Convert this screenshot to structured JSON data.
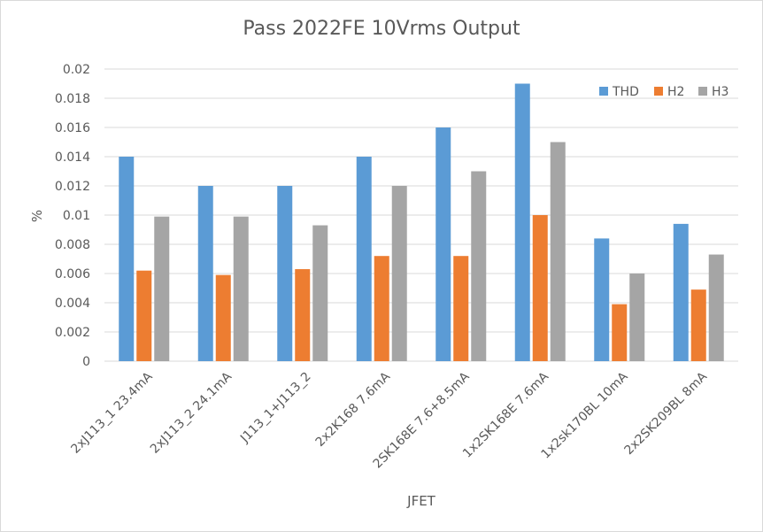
{
  "chart_data": {
    "type": "bar",
    "title": "Pass 2022FE 10Vrms Output",
    "xlabel": "JFET",
    "ylabel": "%",
    "ylim": [
      0,
      0.02
    ],
    "yticks": [
      "0",
      "0.002",
      "0.004",
      "0.006",
      "0.008",
      "0.01",
      "0.012",
      "0.014",
      "0.016",
      "0.018",
      "0.02"
    ],
    "grid": true,
    "legend_position": "top-right",
    "categories": [
      "2xJ113_1 23.4mA",
      "2xJ113_2 24.1mA",
      "J113_1+J113_2",
      "2x2K168 7.6mA",
      "2SK168E 7.6+8.5mA",
      "1x2SK168E 7.6mA",
      "1x2sk170BL 10mA",
      "2x2SK209BL 8mA"
    ],
    "series": [
      {
        "name": "THD",
        "color": "#5b9bd5",
        "values": [
          0.014,
          0.012,
          0.012,
          0.014,
          0.016,
          0.019,
          0.0084,
          0.0094
        ]
      },
      {
        "name": "H2",
        "color": "#ed7d31",
        "values": [
          0.0062,
          0.0059,
          0.0063,
          0.0072,
          0.0072,
          0.01,
          0.0039,
          0.0049
        ]
      },
      {
        "name": "H3",
        "color": "#a5a5a5",
        "values": [
          0.0099,
          0.0099,
          0.0093,
          0.012,
          0.013,
          0.015,
          0.006,
          0.0073
        ]
      }
    ]
  }
}
